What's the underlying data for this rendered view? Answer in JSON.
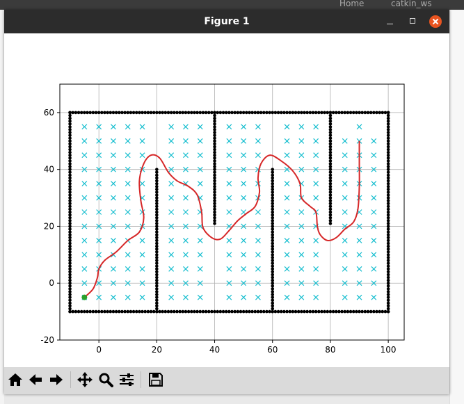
{
  "window": {
    "title": "Figure 1"
  },
  "background": {
    "tab_home": "Home",
    "tab_ws": "catkin_ws"
  },
  "toolbar": {
    "buttons": [
      {
        "name": "home-button",
        "icon": "home-icon"
      },
      {
        "name": "back-button",
        "icon": "arrow-left-icon"
      },
      {
        "name": "forward-button",
        "icon": "arrow-right-icon"
      },
      {
        "name": "pan-button",
        "icon": "move-icon"
      },
      {
        "name": "zoom-button",
        "icon": "magnifier-icon"
      },
      {
        "name": "configure-subplots-button",
        "icon": "sliders-icon"
      },
      {
        "name": "save-button",
        "icon": "floppy-disk-icon"
      }
    ]
  },
  "colors": {
    "titlebar": "#2c2c2c",
    "close_button": "#e95420",
    "obstacle": "#000000",
    "grid_marker": "#17becf",
    "path": "#d62728",
    "start": "#2ca02c"
  },
  "chart_data": {
    "type": "scatter",
    "xlim": [
      -13.5,
      105.5
    ],
    "ylim": [
      -20,
      70
    ],
    "xticks": [
      0,
      20,
      40,
      60,
      80,
      100
    ],
    "yticks": [
      -20,
      0,
      20,
      40,
      60
    ],
    "grid": true,
    "obstacles": {
      "marker": "dot",
      "segments": [
        {
          "x1": -10,
          "y1": -10,
          "x2": 100,
          "y2": -10
        },
        {
          "x1": -10,
          "y1": 60,
          "x2": 100,
          "y2": 60
        },
        {
          "x1": -10,
          "y1": -10,
          "x2": -10,
          "y2": 60
        },
        {
          "x1": 100,
          "y1": -10,
          "x2": 100,
          "y2": 60
        },
        {
          "x1": 20,
          "y1": -10,
          "x2": 20,
          "y2": 40
        },
        {
          "x1": 40,
          "y1": 21,
          "x2": 40,
          "y2": 60
        },
        {
          "x1": 60,
          "y1": -10,
          "x2": 60,
          "y2": 40
        },
        {
          "x1": 80,
          "y1": 21,
          "x2": 80,
          "y2": 60
        }
      ]
    },
    "grid_points": {
      "marker": "x",
      "x_start": -5,
      "x_end": 95,
      "y_start": -5,
      "y_end": 55,
      "step": 5,
      "excluded_columns": [
        20,
        40,
        60,
        80
      ],
      "excluded_cells": [
        [
          85,
          55
        ],
        [
          95,
          55
        ]
      ]
    },
    "path": {
      "points": [
        [
          -5,
          -5
        ],
        [
          -2,
          -2
        ],
        [
          -0.5,
          2
        ],
        [
          0,
          5
        ],
        [
          2,
          8
        ],
        [
          6,
          11
        ],
        [
          10,
          15
        ],
        [
          14,
          18
        ],
        [
          15.5,
          23
        ],
        [
          14.5,
          29
        ],
        [
          14,
          36
        ],
        [
          15.5,
          42
        ],
        [
          18,
          45
        ],
        [
          21,
          44
        ],
        [
          24,
          39
        ],
        [
          27,
          36
        ],
        [
          31,
          34
        ],
        [
          34,
          31
        ],
        [
          35.5,
          25
        ],
        [
          36,
          19.5
        ],
        [
          39,
          16
        ],
        [
          42,
          15.5
        ],
        [
          45,
          18.5
        ],
        [
          48,
          22
        ],
        [
          51,
          24.5
        ],
        [
          54,
          27
        ],
        [
          55.5,
          32
        ],
        [
          55,
          37
        ],
        [
          56,
          42
        ],
        [
          59,
          45
        ],
        [
          63,
          43
        ],
        [
          67,
          39.5
        ],
        [
          69.5,
          35
        ],
        [
          70,
          30
        ],
        [
          73,
          27
        ],
        [
          75,
          25
        ],
        [
          75.5,
          20
        ],
        [
          76.5,
          17
        ],
        [
          79,
          15
        ],
        [
          82,
          16
        ],
        [
          85,
          19
        ],
        [
          88,
          21.5
        ],
        [
          89.5,
          26
        ],
        [
          90,
          34
        ],
        [
          90,
          42
        ],
        [
          90,
          50
        ]
      ]
    },
    "start": {
      "x": -5,
      "y": -5
    },
    "goal": {
      "x": 90,
      "y": 50
    }
  }
}
